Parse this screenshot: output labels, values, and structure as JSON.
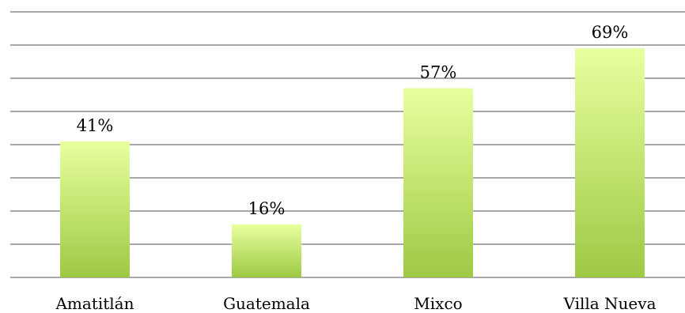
{
  "chart_data": {
    "type": "bar",
    "categories": [
      "Amatitlán",
      "Guatemala",
      "Mixco",
      "Villa Nueva"
    ],
    "values": [
      41,
      16,
      57,
      69
    ],
    "data_labels": [
      "41%",
      "16%",
      "57%",
      "69%"
    ],
    "title": "",
    "xlabel": "",
    "ylabel": "",
    "ylim": [
      0,
      80
    ],
    "y_tick_step": 10,
    "y_tick_labels_shown": false,
    "grid": true,
    "legend": "none",
    "colors": {
      "bar_top": "#e8ff9e",
      "bar_bottom": "#9ec944",
      "grid": "#8c8c8c",
      "text": "#000000"
    }
  }
}
